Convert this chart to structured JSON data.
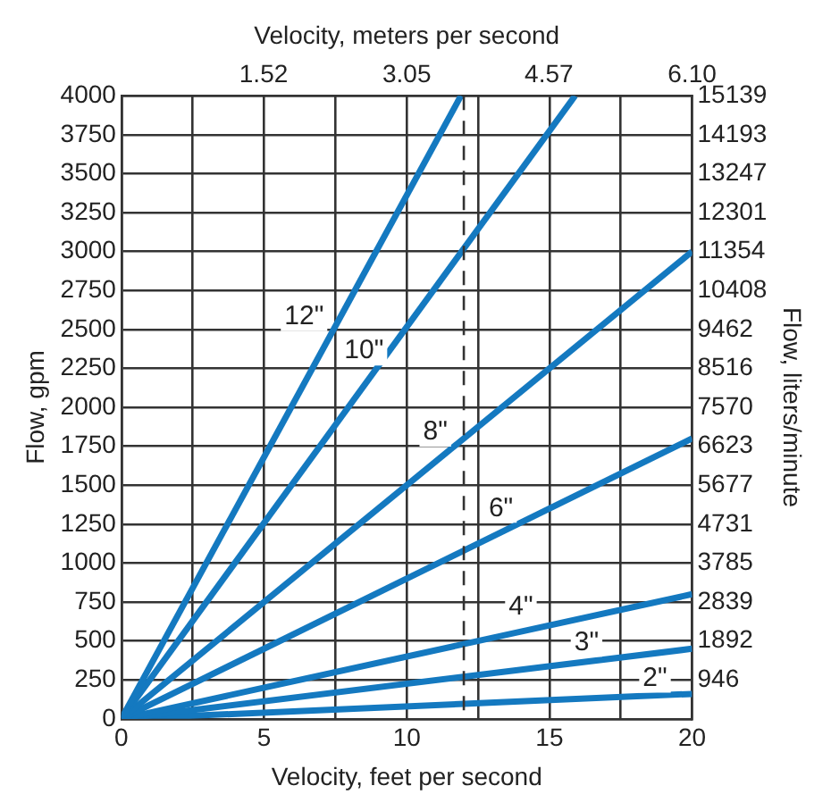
{
  "chart_data": {
    "type": "line",
    "xlabel": "Velocity, feet per second",
    "ylabel": "Flow, gpm",
    "y2label": "Flow, liters/minute",
    "x2label": "Velocity, meters per second",
    "xlim": [
      0,
      20
    ],
    "xticks": [
      0,
      {
        "value": 2.5,
        "label": null
      },
      5,
      {
        "value": 7.5,
        "label": null
      },
      10,
      {
        "value": 12.5,
        "label": null
      },
      15,
      {
        "value": 17.5,
        "label": null
      },
      20
    ],
    "x2lim": [
      0,
      6.1
    ],
    "x2ticks": [
      1.52,
      3.05,
      4.57,
      {
        "value": 6.1,
        "label": "6.10"
      }
    ],
    "ylim": [
      0,
      4000
    ],
    "yticks": [
      0,
      250,
      500,
      750,
      1000,
      1250,
      1500,
      1750,
      2000,
      2250,
      2500,
      2750,
      3000,
      3250,
      3500,
      3750,
      4000
    ],
    "y2lim": [
      0,
      15139
    ],
    "y2ticks": [
      946,
      1892,
      2839,
      3785,
      4731,
      5677,
      6623,
      7570,
      8516,
      9462,
      10408,
      11354,
      12301,
      13247,
      14193,
      15139
    ],
    "grid": true,
    "legend": false,
    "marker": "none",
    "line_style": "solid",
    "series": [
      {
        "color": "#1479c0",
        "x": [
          0,
          11.9
        ],
        "values": [
          0,
          4000
        ]
      },
      {
        "color": "#1479c0",
        "x": [
          0,
          15.9
        ],
        "values": [
          0,
          4000
        ]
      },
      {
        "color": "#1479c0",
        "x": [
          0,
          20
        ],
        "values": [
          0,
          3000
        ]
      },
      {
        "color": "#1479c0",
        "x": [
          0,
          20
        ],
        "values": [
          0,
          1800
        ]
      },
      {
        "color": "#1479c0",
        "x": [
          0,
          20
        ],
        "values": [
          0,
          800
        ]
      },
      {
        "color": "#1479c0",
        "x": [
          0,
          20
        ],
        "values": [
          0,
          450
        ]
      },
      {
        "color": "#1479c0",
        "x": [
          0,
          20
        ],
        "values": [
          0,
          160
        ]
      }
    ],
    "ref_lines": [
      {
        "axis": "x",
        "value": 12,
        "color": "#333333",
        "line_style": "dashed"
      }
    ],
    "annotations": [
      {
        "text": "12\"",
        "x": 6.4,
        "y": 2580
      },
      {
        "text": "10\"",
        "x": 8.5,
        "y": 2360
      },
      {
        "text": "8\"",
        "x": 11,
        "y": 1840
      },
      {
        "text": "6\"",
        "x": 13.3,
        "y": 1350
      },
      {
        "text": "4\"",
        "x": 14,
        "y": 720
      },
      {
        "text": "3\"",
        "x": 16.3,
        "y": 490
      },
      {
        "text": "2\"",
        "x": 18.7,
        "y": 260
      }
    ]
  }
}
